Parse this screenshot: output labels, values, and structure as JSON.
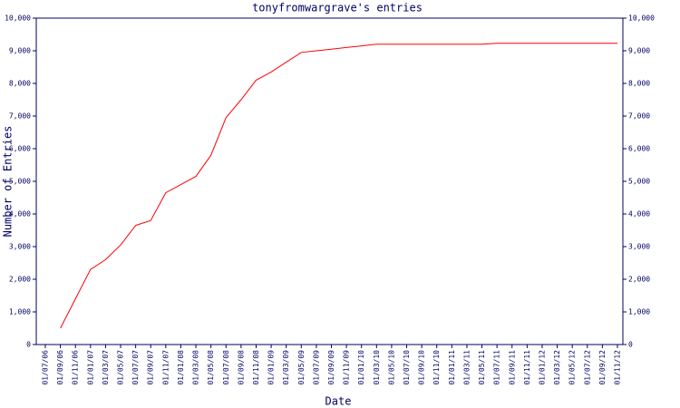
{
  "chart_data": {
    "type": "line",
    "title": "tonyfromwargrave's entries",
    "x_label": "Date",
    "y_label": "Number of Entries",
    "categories": [
      "01/07/06",
      "01/09/06",
      "01/11/06",
      "01/01/07",
      "01/03/07",
      "01/05/07",
      "01/07/07",
      "01/09/07",
      "01/11/07",
      "01/01/08",
      "01/03/08",
      "01/05/08",
      "01/07/08",
      "01/09/08",
      "01/11/08",
      "01/01/09",
      "01/03/09",
      "01/05/09",
      "01/07/09",
      "01/09/09",
      "01/11/09",
      "01/01/10",
      "01/03/10",
      "01/05/10",
      "01/07/10",
      "01/09/10",
      "01/11/10",
      "01/01/11",
      "01/03/11",
      "01/05/11",
      "01/07/11",
      "01/09/11",
      "01/11/11",
      "01/01/12",
      "01/03/12",
      "01/05/12",
      "01/07/12",
      "01/09/12",
      "01/11/12"
    ],
    "series": [
      {
        "color": "#ff0000",
        "values": [
          null,
          500,
          1400,
          2300,
          2600,
          3050,
          3650,
          3800,
          4650,
          4900,
          5150,
          5800,
          6950,
          7500,
          8100,
          8350,
          8650,
          8950,
          9000,
          9050,
          9100,
          9150,
          9200,
          9200,
          9200,
          9200,
          9200,
          9200,
          9200,
          9200,
          9230,
          9230,
          9230,
          9230,
          9230,
          9230,
          9230,
          9230,
          9230
        ]
      }
    ],
    "ylim": [
      0,
      10000
    ],
    "yticks": [
      0,
      {
        "value": 1000,
        "label": "1,000"
      },
      {
        "value": 2000,
        "label": "2,000"
      },
      {
        "value": 3000,
        "label": "3,000"
      },
      {
        "value": 4000,
        "label": "4,000"
      },
      {
        "value": 5000,
        "label": "5,000"
      },
      {
        "value": 6000,
        "label": "6,000"
      },
      {
        "value": 7000,
        "label": "7,000"
      },
      {
        "value": 8000,
        "label": "8,000"
      },
      {
        "value": 9000,
        "label": "9,000"
      },
      {
        "value": 10000,
        "label": "10,000"
      }
    ],
    "grid": false
  }
}
